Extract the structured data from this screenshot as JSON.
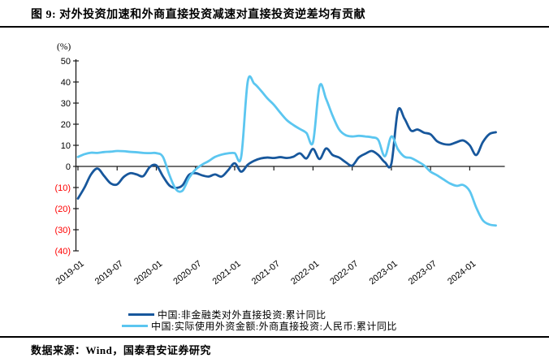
{
  "figure": {
    "title": "图 9: 对外投资加速和外商直接投资减速对直接投资逆差均有贡献",
    "source": "数据来源：Wind，国泰君安证券研究"
  },
  "colors": {
    "odi_line": "#17579C",
    "fdi_line": "#5BC6F0",
    "negative_tick": "#FF0000",
    "axis": "#1a1a1a"
  },
  "chart_data": {
    "type": "line",
    "unit_label": "(%)",
    "x_start": "2019-01",
    "x_end": "2024-05",
    "frequency": "monthly",
    "x_tick_labels": [
      "2019-01",
      "2019-07",
      "2020-01",
      "2020-07",
      "2021-01",
      "2021-07",
      "2022-01",
      "2022-07",
      "2023-01",
      "2023-07",
      "2024-01"
    ],
    "y_ticks": [
      {
        "value": 50,
        "label": "50"
      },
      {
        "value": 40,
        "label": "40"
      },
      {
        "value": 30,
        "label": "30"
      },
      {
        "value": 20,
        "label": "20"
      },
      {
        "value": 10,
        "label": "10"
      },
      {
        "value": 0,
        "label": "0"
      },
      {
        "value": -10,
        "label": "(10)"
      },
      {
        "value": -20,
        "label": "(20)"
      },
      {
        "value": -30,
        "label": "(30)"
      },
      {
        "value": -40,
        "label": "(40)"
      }
    ],
    "ylim": [
      -40,
      50
    ],
    "grid": false,
    "legend_position": "bottom",
    "series": [
      {
        "name": "中国:非金融类对外直接投资:累计同比",
        "color_key": "odi_line",
        "values": [
          -15.2,
          -10.0,
          -3.8,
          -1.0,
          -4.5,
          -8.0,
          -8.5,
          -5.0,
          -3.2,
          -3.8,
          -4.6,
          -0.3,
          0.5,
          -4.6,
          -9.0,
          -10.2,
          -9.0,
          -4.0,
          -3.2,
          -4.2,
          -4.8,
          -3.8,
          -4.8,
          -1.8,
          1.5,
          -2.5,
          0.8,
          2.7,
          3.8,
          4.2,
          4.0,
          4.4,
          4.0,
          4.6,
          6.2,
          3.8,
          8.3,
          3.5,
          8.5,
          5.4,
          4.2,
          2.0,
          0.4,
          4.2,
          6.0,
          7.3,
          5.4,
          2.0,
          1.3,
          26.4,
          22.7,
          17.0,
          17.5,
          16.0,
          15.2,
          11.9,
          10.6,
          10.4,
          11.5,
          12.3,
          10.0,
          5.4,
          11.5,
          15.3,
          16.2
        ]
      },
      {
        "name": "中国:实际使用外资金额:外商直接投资:人民币:累计同比",
        "color_key": "fdi_line",
        "values": [
          4.5,
          5.8,
          6.5,
          6.4,
          6.8,
          7.0,
          7.3,
          7.2,
          6.9,
          6.7,
          6.4,
          6.3,
          6.3,
          4.6,
          -4.0,
          -10.8,
          -11.5,
          -5.5,
          -1.5,
          0.8,
          2.5,
          4.5,
          5.6,
          6.2,
          6.3,
          4.6,
          40.2,
          39.2,
          36.0,
          32.3,
          29.2,
          25.4,
          21.9,
          19.6,
          17.7,
          15.8,
          11.5,
          38.1,
          32.0,
          24.0,
          17.5,
          14.8,
          14.2,
          14.5,
          14.2,
          13.8,
          12.5,
          4.8,
          14.2,
          8.1,
          4.6,
          4.0,
          2.4,
          0.5,
          -2.5,
          -4.2,
          -6.2,
          -8.1,
          -9.2,
          -8.8,
          -11.7,
          -19.5,
          -25.5,
          -27.5,
          -28.0
        ]
      }
    ]
  }
}
